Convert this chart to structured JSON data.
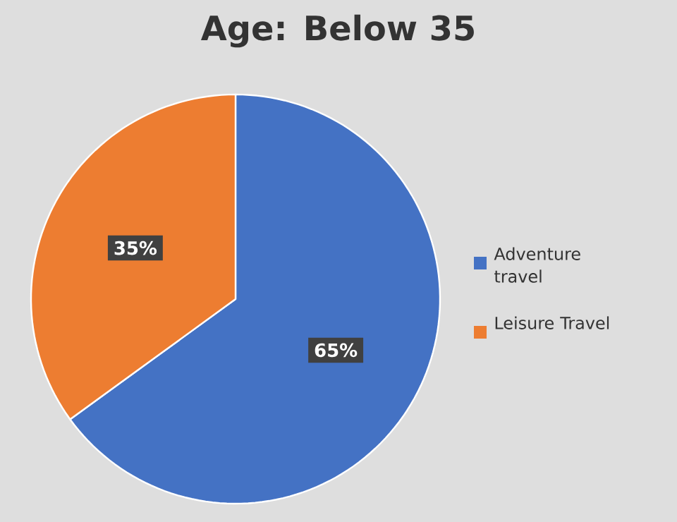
{
  "chart_data": {
    "type": "pie",
    "title": "Age: Below 35",
    "categories": [
      "Adventure travel",
      "Leisure Travel"
    ],
    "values": [
      65,
      35
    ],
    "colors": [
      "#4472c4",
      "#ed7d31"
    ],
    "value_labels": [
      "65%",
      "35%"
    ],
    "legend": "right"
  }
}
